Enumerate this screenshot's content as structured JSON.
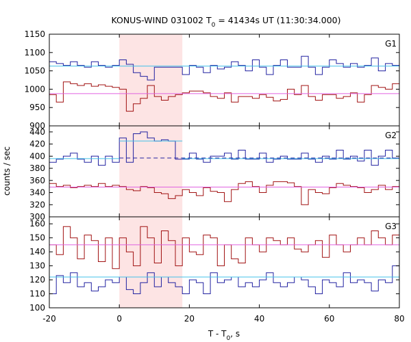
{
  "chart_data": {
    "type": "line",
    "title": "KONUS-WIND 031002 T",
    "title_sub": "0",
    "title_rest": " = 41434s UT (11:30:34.000)",
    "xlabel": "T - T",
    "xlabel_sub": "0",
    "xlabel_rest": ", s",
    "ylabel": "counts / sec",
    "xlim": [
      -20,
      80
    ],
    "xticks": [
      -20,
      0,
      20,
      40,
      60,
      80
    ],
    "highlight_interval": [
      0,
      18
    ],
    "colors": {
      "red": "#a01010",
      "blue": "#2020a0",
      "pink": "#e060e0",
      "cyan": "#40c0e8",
      "highlight": "#fde4e4"
    },
    "panels": [
      {
        "label": "G1",
        "ylim": [
          900,
          1150
        ],
        "yticks": [
          900,
          950,
          1000,
          1050,
          1100,
          1150
        ],
        "series": [
          {
            "color_key": "blue",
            "start": -20,
            "step": 2,
            "values": [
              1075,
              1070,
              1065,
              1075,
              1065,
              1060,
              1075,
              1065,
              1060,
              1065,
              1080,
              1068,
              1045,
              1035,
              1025,
              1060,
              1060,
              1060,
              1060,
              1040,
              1065,
              1060,
              1045,
              1065,
              1055,
              1060,
              1075,
              1065,
              1050,
              1080,
              1060,
              1040,
              1065,
              1080,
              1060,
              1060,
              1090,
              1060,
              1040,
              1060,
              1080,
              1070,
              1060,
              1070,
              1060,
              1065,
              1085,
              1050,
              1070,
              1065
            ]
          },
          {
            "color_key": "red",
            "start": -20,
            "step": 2,
            "values": [
              985,
              965,
              1020,
              1015,
              1010,
              1015,
              1008,
              1012,
              1008,
              1005,
              1000,
              940,
              960,
              975,
              1010,
              980,
              970,
              980,
              985,
              990,
              995,
              995,
              990,
              980,
              975,
              990,
              965,
              980,
              980,
              975,
              985,
              978,
              968,
              972,
              1000,
              985,
              1010,
              980,
              970,
              985,
              985,
              975,
              980,
              990,
              965,
              985,
              1010,
              1005,
              1000,
              1015
            ]
          },
          {
            "color_key": "cyan",
            "segments": [
              [
                -20,
                80,
                1063
              ]
            ]
          },
          {
            "color_key": "pink",
            "segments": [
              [
                -20,
                80,
                988
              ]
            ]
          }
        ]
      },
      {
        "label": "G2",
        "ylim": [
          300,
          450
        ],
        "yticks": [
          300,
          320,
          340,
          360,
          380,
          400,
          420,
          440
        ],
        "series": [
          {
            "color_key": "blue",
            "start": -20,
            "step": 2,
            "values": [
              390,
              395,
              400,
              405,
              395,
              390,
              400,
              385,
              400,
              390,
              430,
              390,
              437,
              440,
              430,
              425,
              427,
              425,
              395,
              395,
              405,
              395,
              390,
              400,
              400,
              405,
              395,
              410,
              395,
              395,
              405,
              390,
              395,
              400,
              395,
              395,
              405,
              395,
              390,
              400,
              395,
              410,
              395,
              400,
              392,
              410,
              385,
              400,
              410,
              397
            ]
          },
          {
            "color_key": "red",
            "start": -20,
            "step": 2,
            "values": [
              355,
              350,
              352,
              348,
              350,
              352,
              350,
              355,
              350,
              352,
              350,
              345,
              343,
              350,
              348,
              340,
              338,
              330,
              335,
              345,
              340,
              335,
              348,
              342,
              340,
              325,
              345,
              355,
              358,
              350,
              340,
              352,
              358,
              358,
              356,
              350,
              320,
              345,
              340,
              338,
              348,
              355,
              352,
              350,
              348,
              340,
              345,
              352,
              345,
              350
            ]
          },
          {
            "color_key": "cyan",
            "segments": [
              [
                -20,
                0,
                396
              ],
              [
                0,
                18,
                425
              ],
              [
                18,
                80,
                396
              ]
            ]
          },
          {
            "color_key": "blue",
            "dashed": true,
            "segments": [
              [
                0,
                80,
                397
              ]
            ]
          },
          {
            "color_key": "pink",
            "segments": [
              [
                -20,
                80,
                349
              ]
            ]
          }
        ]
      },
      {
        "label": "G3",
        "ylim": [
          100,
          165
        ],
        "yticks": [
          100,
          110,
          120,
          130,
          140,
          150,
          160
        ],
        "series": [
          {
            "color_key": "red",
            "start": -20,
            "step": 2,
            "values": [
              145,
              138,
              158,
              150,
              135,
              152,
              148,
              133,
              150,
              128,
              150,
              140,
              130,
              158,
              150,
              132,
              155,
              148,
              130,
              150,
              140,
              138,
              152,
              150,
              130,
              145,
              135,
              132,
              150,
              145,
              140,
              150,
              148,
              145,
              150,
              142,
              140,
              145,
              148,
              136,
              152,
              145,
              140,
              145,
              150,
              145,
              155,
              150,
              145,
              152
            ]
          },
          {
            "color_key": "blue",
            "start": -20,
            "step": 2,
            "values": [
              110,
              123,
              118,
              125,
              115,
              118,
              112,
              115,
              120,
              118,
              122,
              113,
              110,
              118,
              125,
              115,
              122,
              118,
              115,
              110,
              120,
              118,
              110,
              125,
              118,
              120,
              122,
              115,
              118,
              115,
              120,
              125,
              118,
              115,
              118,
              122,
              120,
              115,
              110,
              120,
              118,
              115,
              125,
              118,
              120,
              118,
              112,
              120,
              118,
              130
            ]
          },
          {
            "color_key": "pink",
            "segments": [
              [
                -20,
                80,
                145
              ]
            ]
          },
          {
            "color_key": "cyan",
            "segments": [
              [
                -20,
                80,
                122
              ]
            ]
          }
        ]
      }
    ]
  }
}
